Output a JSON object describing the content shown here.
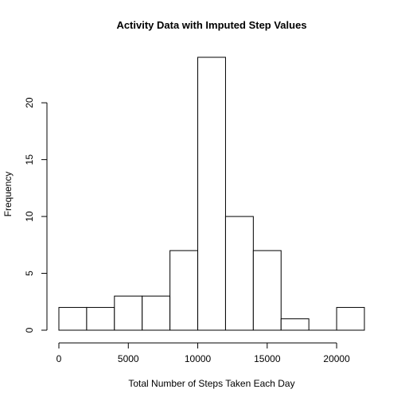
{
  "chart_data": {
    "type": "bar",
    "title": "Activity Data with Imputed Step Values",
    "xlabel": "Total Number of Steps Taken Each Day",
    "ylabel": "Frequency",
    "bins": [
      {
        "start": 0,
        "end": 2000,
        "count": 2
      },
      {
        "start": 2000,
        "end": 4000,
        "count": 2
      },
      {
        "start": 4000,
        "end": 6000,
        "count": 3
      },
      {
        "start": 6000,
        "end": 8000,
        "count": 3
      },
      {
        "start": 8000,
        "end": 10000,
        "count": 7
      },
      {
        "start": 10000,
        "end": 12000,
        "count": 24
      },
      {
        "start": 12000,
        "end": 14000,
        "count": 10
      },
      {
        "start": 14000,
        "end": 16000,
        "count": 7
      },
      {
        "start": 16000,
        "end": 18000,
        "count": 1
      },
      {
        "start": 18000,
        "end": 20000,
        "count": 0
      },
      {
        "start": 20000,
        "end": 22000,
        "count": 2
      }
    ],
    "xlim": [
      0,
      22000
    ],
    "ylim": [
      0,
      24
    ],
    "x_ticks": [
      0,
      5000,
      10000,
      15000,
      20000
    ],
    "y_ticks": [
      0,
      5,
      10,
      15,
      20
    ],
    "grid": false,
    "colors": {
      "bar_fill": "#ffffff",
      "bar_stroke": "#000000"
    }
  }
}
